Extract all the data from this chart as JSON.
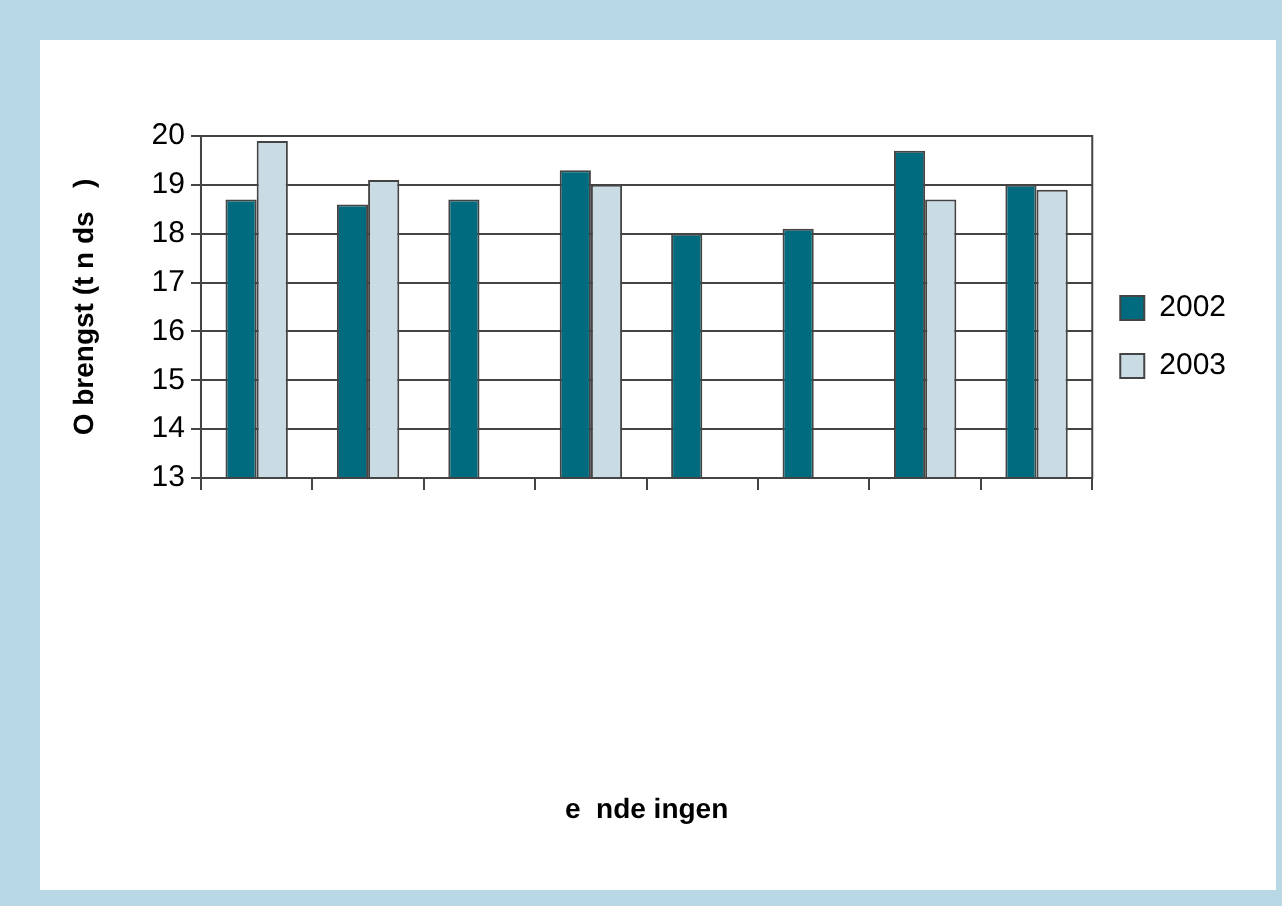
{
  "chart_data": {
    "type": "bar",
    "annotations": [
      "e  nde ingen"
    ],
    "ylabel": "O brengst (t n ds   )",
    "categories": [
      null,
      null,
      null,
      null,
      null,
      null,
      null,
      null
    ],
    "series": [
      {
        "name": "2002",
        "color": "#006a7f",
        "values": [
          18.7,
          18.6,
          18.7,
          19.3,
          18.0,
          18.1,
          19.7,
          19.0
        ]
      },
      {
        "name": "2003",
        "color": "#c9dbe3",
        "values": [
          19.9,
          19.1,
          null,
          19.0,
          null,
          null,
          18.7,
          18.9
        ]
      }
    ],
    "ylim": [
      13,
      20
    ],
    "yticks": [
      13,
      14,
      15,
      16,
      17,
      18,
      19,
      20
    ],
    "grid": "y",
    "legend": "right"
  }
}
